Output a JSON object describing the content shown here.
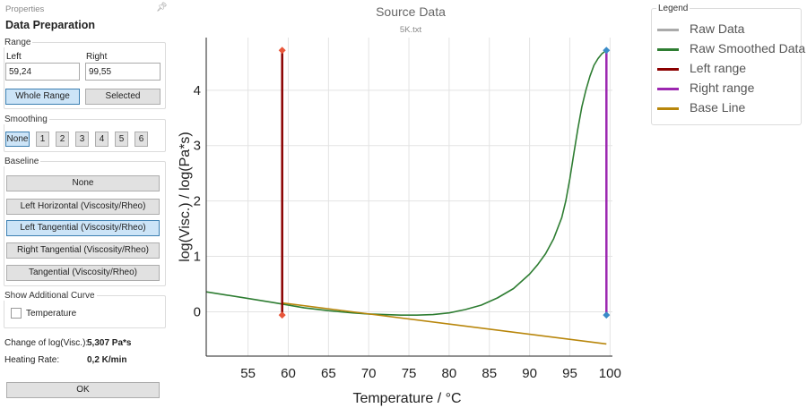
{
  "panel": {
    "header": "Properties",
    "title": "Data Preparation",
    "range": {
      "legend": "Range",
      "left_label": "Left",
      "right_label": "Right",
      "left_value": "59,24",
      "right_value": "99,55",
      "whole_range_label": "Whole Range",
      "selected_label": "Selected",
      "active": "Whole Range"
    },
    "smoothing": {
      "legend": "Smoothing",
      "options": [
        "None",
        "1",
        "2",
        "3",
        "4",
        "5",
        "6"
      ],
      "active": "None"
    },
    "baseline": {
      "legend": "Baseline",
      "options": [
        "None",
        "Left Horizontal (Viscosity/Rheo)",
        "Left Tangential (Viscosity/Rheo)",
        "Right Tangential (Viscosity/Rheo)",
        "Tangential (Viscosity/Rheo)"
      ],
      "active": "Left Tangential (Viscosity/Rheo)"
    },
    "additional_curve": {
      "legend": "Show Additional Curve",
      "temperature_label": "Temperature",
      "temperature_checked": false
    },
    "results": {
      "change_label": "Change of log(Visc.):",
      "change_value": "5,307 Pa*s",
      "heating_label": "Heating Rate:",
      "heating_value": "0,2 K/min"
    },
    "ok_label": "OK"
  },
  "legend": {
    "caption": "Legend",
    "items": [
      {
        "label": "Raw Data",
        "color": "#aaaaaa"
      },
      {
        "label": "Raw Smoothed Data",
        "color": "#2e7d32"
      },
      {
        "label": "Left range",
        "color": "#8b0000"
      },
      {
        "label": "Right range",
        "color": "#9c27b0"
      },
      {
        "label": "Base Line",
        "color": "#b8860b"
      }
    ]
  },
  "chart_data": {
    "type": "line",
    "title": "Source Data",
    "subtitle": "5K.txt",
    "xlabel": "Temperature / °C",
    "ylabel": "log(Visc.) / log(Pa*s)",
    "xlim": [
      49.8,
      100.3
    ],
    "ylim": [
      -0.8,
      4.95
    ],
    "xticks": [
      55,
      60,
      65,
      70,
      75,
      80,
      85,
      90,
      95,
      100
    ],
    "yticks": [
      0,
      1,
      2,
      3,
      4
    ],
    "grid": true,
    "series": [
      {
        "name": "Raw Smoothed Data",
        "color": "#2e7d32",
        "x": [
          49.8,
          52,
          55,
          58,
          59.24,
          62,
          65,
          68,
          70,
          72,
          74,
          75,
          76,
          78,
          80,
          82,
          84,
          86,
          88,
          90,
          91,
          92,
          93,
          94,
          94.5,
          95,
          95.5,
          96,
          96.5,
          97,
          97.5,
          98,
          98.5,
          99,
          99.55
        ],
        "y": [
          0.36,
          0.31,
          0.24,
          0.17,
          0.14,
          0.07,
          0.02,
          -0.02,
          -0.04,
          -0.05,
          -0.06,
          -0.06,
          -0.06,
          -0.05,
          -0.02,
          0.04,
          0.12,
          0.25,
          0.42,
          0.68,
          0.85,
          1.05,
          1.32,
          1.7,
          2.0,
          2.4,
          2.85,
          3.3,
          3.7,
          4.0,
          4.25,
          4.45,
          4.57,
          4.66,
          4.72
        ]
      },
      {
        "name": "Base Line",
        "color": "#b8860b",
        "x": [
          59.24,
          99.55
        ],
        "y": [
          0.16,
          -0.58
        ]
      },
      {
        "name": "Left range",
        "color": "#8b0000",
        "x": [
          59.24,
          59.24
        ],
        "y": [
          -0.06,
          4.72
        ]
      },
      {
        "name": "Right range",
        "color": "#9c27b0",
        "x": [
          99.55,
          99.55
        ],
        "y": [
          -0.06,
          4.72
        ]
      }
    ],
    "markers": [
      {
        "x": 59.24,
        "y": 4.72,
        "color": "#e8563a"
      },
      {
        "x": 59.24,
        "y": -0.06,
        "color": "#e8563a"
      },
      {
        "x": 99.55,
        "y": 4.72,
        "color": "#3a8bc8"
      },
      {
        "x": 99.55,
        "y": -0.06,
        "color": "#3a8bc8"
      }
    ]
  }
}
